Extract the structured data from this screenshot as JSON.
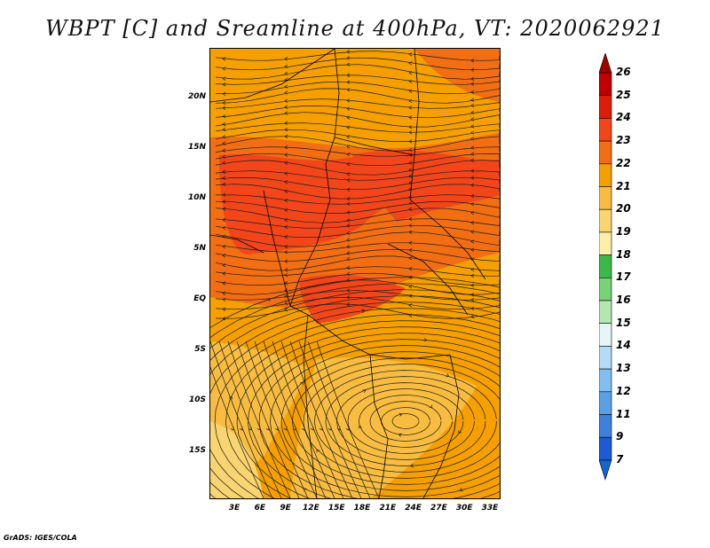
{
  "title": "WBPT [C] and Sreamline at 400hPa, VT: 2020062921",
  "credit": "GrADS: IGES/COLA",
  "lat_labels": [
    "20N",
    "15N",
    "10N",
    "5N",
    "EQ",
    "5S",
    "10S",
    "15S"
  ],
  "lon_labels": [
    "3E",
    "6E",
    "9E",
    "12E",
    "15E",
    "18E",
    "21E",
    "24E",
    "27E",
    "30E",
    "33E"
  ],
  "colorbar": {
    "labels": [
      "26",
      "25",
      "24",
      "23",
      "22",
      "21",
      "20",
      "19",
      "18",
      "17",
      "16",
      "15",
      "14",
      "13",
      "12",
      "11",
      "9",
      "7"
    ],
    "colors": [
      "#a50000",
      "#c00000",
      "#dc1d0a",
      "#f2461a",
      "#f26e12",
      "#f5a000",
      "#f8bd40",
      "#f9d470",
      "#fbf0a8",
      "#3cb84a",
      "#78d278",
      "#b4e6b4",
      "#e6f5f5",
      "#b4dcf5",
      "#82beef",
      "#5aa0e6",
      "#3c82dc",
      "#1e5ad2",
      "#1464d2"
    ]
  },
  "field_colors": {
    "warm": "#f26e12",
    "warmer": "#f2461a",
    "mid": "#f5a000",
    "cool": "#f8bd40",
    "coolest": "#f9d470"
  }
}
